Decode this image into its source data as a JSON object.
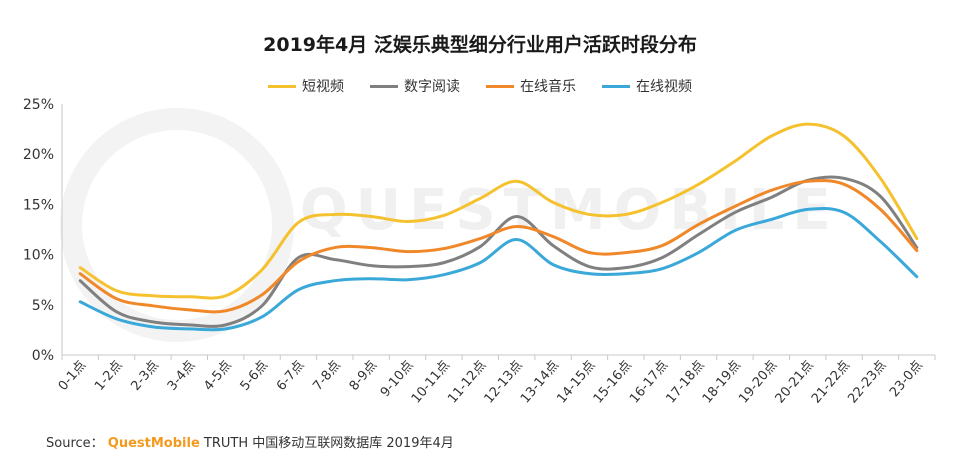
{
  "chart_data": {
    "type": "line",
    "title": "2019年4月 泛娱乐典型细分行业用户活跃时段分布",
    "categories": [
      "0-1点",
      "1-2点",
      "2-3点",
      "3-4点",
      "4-5点",
      "5-6点",
      "6-7点",
      "7-8点",
      "8-9点",
      "9-10点",
      "10-11点",
      "11-12点",
      "12-13点",
      "13-14点",
      "14-15点",
      "15-16点",
      "16-17点",
      "17-18点",
      "18-19点",
      "19-20点",
      "20-21点",
      "21-22点",
      "22-23点",
      "23-0点"
    ],
    "ylim": [
      0,
      25
    ],
    "yticks": [
      "0%",
      "5%",
      "10%",
      "15%",
      "20%",
      "25%"
    ],
    "legend_position": "top-center",
    "series": [
      {
        "name": "短视频",
        "color": "#f5c12e",
        "values": [
          8.7,
          6.4,
          5.9,
          5.8,
          5.9,
          8.5,
          13.2,
          14.0,
          13.8,
          13.3,
          13.9,
          15.6,
          17.3,
          15.2,
          14.0,
          14.0,
          15.2,
          17.0,
          19.3,
          21.8,
          23.0,
          21.8,
          17.6,
          11.6
        ]
      },
      {
        "name": "数字阅读",
        "color": "#808080",
        "values": [
          7.4,
          4.3,
          3.3,
          3.0,
          3.0,
          4.9,
          9.7,
          9.5,
          8.9,
          8.8,
          9.2,
          10.8,
          13.8,
          10.9,
          8.8,
          8.7,
          9.7,
          12.0,
          14.2,
          15.7,
          17.4,
          17.6,
          15.8,
          10.7
        ]
      },
      {
        "name": "在线音乐",
        "color": "#f0882a",
        "values": [
          8.1,
          5.6,
          4.9,
          4.5,
          4.4,
          6.0,
          9.3,
          10.7,
          10.7,
          10.3,
          10.6,
          11.6,
          12.8,
          11.8,
          10.2,
          10.2,
          10.9,
          13.0,
          14.8,
          16.4,
          17.3,
          17.0,
          14.5,
          10.4
        ]
      },
      {
        "name": "在线视频",
        "color": "#3aa8d8",
        "values": [
          5.3,
          3.6,
          2.8,
          2.6,
          2.6,
          3.8,
          6.5,
          7.4,
          7.6,
          7.5,
          8.0,
          9.2,
          11.5,
          9.0,
          8.1,
          8.1,
          8.6,
          10.2,
          12.4,
          13.5,
          14.5,
          14.2,
          11.3,
          7.8
        ]
      }
    ]
  },
  "watermark": "QUESTMOBILE",
  "source": {
    "prefix": "Source：",
    "brand": "QuestMobile",
    "text": "TRUTH 中国移动互联网数据库 2019年4月"
  }
}
